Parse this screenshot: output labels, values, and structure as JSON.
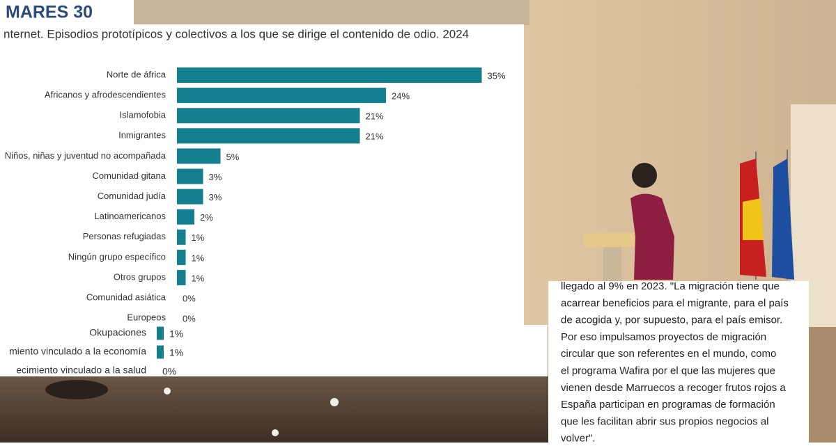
{
  "logo": "MARES 30",
  "chart_data": [
    {
      "type": "bar",
      "orientation": "horizontal",
      "title": "nternet. Episodios prototípicos y colectivos a los que se dirige el contenido de odio. 2024",
      "categories": [
        "Norte de áfrica",
        "Africanos y afrodescendientes",
        "Islamofobia",
        "Inmigrantes",
        "Niños, niñas y juventud no acompañada",
        "Comunidad gitana",
        "Comunidad judía",
        "Latinoamericanos",
        "Personas refugiadas",
        "Ningún grupo específico",
        "Otros grupos",
        "Comunidad asiática",
        "Europeos"
      ],
      "values": [
        35,
        24,
        21,
        21,
        5,
        3,
        3,
        2,
        1,
        1,
        1,
        0,
        0
      ],
      "value_labels": [
        "35%",
        "24%",
        "21%",
        "21%",
        "5%",
        "3%",
        "3%",
        "2%",
        "1%",
        "1%",
        "1%",
        "0%",
        "0%"
      ],
      "color": "#137f8f",
      "xlim": [
        0,
        38
      ]
    },
    {
      "type": "bar",
      "orientation": "horizontal",
      "categories": [
        "Okupaciones",
        "miento vinculado a la economía",
        "ecimiento vinculado a la salud"
      ],
      "values": [
        1,
        1,
        0
      ],
      "value_labels": [
        "1%",
        "1%",
        "0%"
      ],
      "color": "#137f8f",
      "xlim": [
        0,
        55
      ]
    }
  ],
  "quote_lines": [
    "llegado al 9% en 2023. \"La migración tiene que",
    "acarrear beneficios para el migrante, para el país",
    "de acogida y, por supuesto, para el país emisor.",
    "Por eso impulsamos proyectos de migración",
    "circular que son referentes en el mundo, como",
    "el programa Wafira por el que las mujeres que",
    "vienen desde Marruecos a recoger frutos rojos a",
    "España participan en programas de formación",
    "que les facilitan abrir sus propios negocios al",
    "volver\"."
  ]
}
